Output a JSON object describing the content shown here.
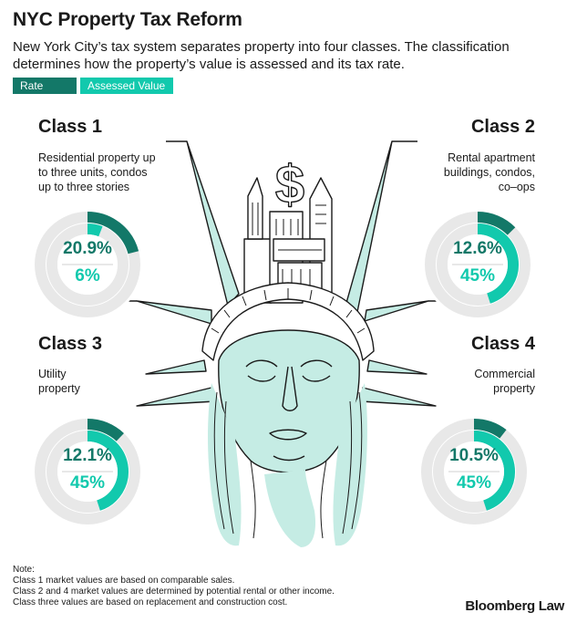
{
  "title": "NYC Property Tax Reform",
  "subtitle": "New York City’s tax system separates property into four classes. The classification determines how the property’s value is assessed and its tax rate.",
  "legend": {
    "rate": "Rate",
    "assessed": "Assessed Value"
  },
  "colors": {
    "rate": "#137868",
    "assessed": "#12c9ad",
    "ring": "#e8e8e8",
    "illustration_fill": "#c5ece4",
    "line": "#1a1a1a"
  },
  "illustration": {
    "icon": "statue-of-liberty-head-with-dollar-sign-and-skyline-icon"
  },
  "chart_data": {
    "type": "donut",
    "series": [
      {
        "name": "Rate",
        "color": "#137868"
      },
      {
        "name": "Assessed Value",
        "color": "#12c9ad"
      }
    ],
    "classes": [
      {
        "name": "Class 1",
        "description": "Residential property up to three units, condos up to three stories",
        "rate": 20.9,
        "assessed_value": 6,
        "rate_label": "20.9%",
        "assessed_label": "6%"
      },
      {
        "name": "Class 2",
        "description": "Rental apartment buildings, condos, co–ops",
        "rate": 12.6,
        "assessed_value": 45,
        "rate_label": "12.6%",
        "assessed_label": "45%"
      },
      {
        "name": "Class 3",
        "description": "Utility property",
        "rate": 12.1,
        "assessed_value": 45,
        "rate_label": "12.1%",
        "assessed_label": "45%"
      },
      {
        "name": "Class 4",
        "description": "Commercial property",
        "rate": 10.5,
        "assessed_value": 45,
        "rate_label": "10.5%",
        "assessed_label": "45%"
      }
    ]
  },
  "classes": [
    {
      "heading": "Class 1",
      "desc_lines": [
        "Residential property up",
        "to three units, condos",
        "up to three stories"
      ]
    },
    {
      "heading": "Class 2",
      "desc_lines": [
        "Rental apartment",
        "buildings, condos,",
        "co–ops"
      ]
    },
    {
      "heading": "Class 3",
      "desc_lines": [
        "Utility",
        "property"
      ]
    },
    {
      "heading": "Class 4",
      "desc_lines": [
        "Commercial",
        "property"
      ]
    }
  ],
  "notes": {
    "label": "Note:",
    "lines": [
      "Class 1 market values are based on comparable sales.",
      "Class 2 and 4 market values are determined by potential rental or other income.",
      "Class three values are based on replacement and construction cost."
    ]
  },
  "source": "Bloomberg Law"
}
